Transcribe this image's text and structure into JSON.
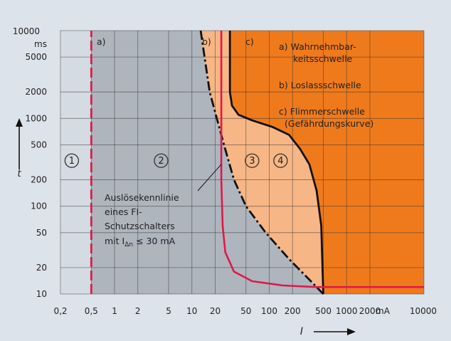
{
  "chart_data": {
    "type": "line",
    "x_axis": {
      "label": "I",
      "unit": "mA",
      "scale": "log",
      "range": [
        0.2,
        10000
      ],
      "ticks": [
        0.2,
        0.5,
        1,
        2,
        5,
        10,
        20,
        50,
        100,
        200,
        500,
        1000,
        2000,
        10000
      ],
      "tick_labels": [
        "0,2",
        "0,5",
        "1",
        "2",
        "5",
        "10",
        "20",
        "50",
        "100",
        "200",
        "500",
        "1000",
        "2000",
        "10000"
      ]
    },
    "y_axis": {
      "label": "t",
      "unit": "ms",
      "scale": "log",
      "range": [
        10,
        10000
      ],
      "ticks": [
        10,
        20,
        50,
        100,
        200,
        500,
        1000,
        2000,
        5000,
        10000
      ],
      "tick_labels": [
        "10",
        "20",
        "50",
        "100",
        "200",
        "500",
        "1000",
        "2000",
        "5000",
        "10000"
      ]
    },
    "grid": true,
    "zones": [
      {
        "id": "1",
        "label": "1",
        "color": "#d4dbe2",
        "x_to": 0.5
      },
      {
        "id": "2",
        "label": "2",
        "color": "#aeb5bd"
      },
      {
        "id": "3",
        "label": "3",
        "color": "#f6b685"
      },
      {
        "id": "4",
        "label": "4",
        "color": "#ef7a1c"
      }
    ],
    "series": [
      {
        "name": "a)",
        "style": "dashed",
        "color": "#d81e4a",
        "points": [
          [
            0.5,
            10
          ],
          [
            0.5,
            10000
          ]
        ]
      },
      {
        "name": "b)",
        "style": "dash-dot",
        "color": "#111111",
        "points": [
          [
            13,
            10000
          ],
          [
            17,
            2000
          ],
          [
            21,
            1000
          ],
          [
            26,
            500
          ],
          [
            35,
            200
          ],
          [
            50,
            100
          ],
          [
            90,
            50
          ],
          [
            180,
            25
          ],
          [
            320,
            15
          ],
          [
            500,
            10
          ]
        ]
      },
      {
        "name": "c)",
        "style": "solid",
        "color": "#111111",
        "points": [
          [
            31,
            10000
          ],
          [
            31,
            5000
          ],
          [
            31,
            2000
          ],
          [
            33,
            1400
          ],
          [
            40,
            1100
          ],
          [
            60,
            950
          ],
          [
            110,
            800
          ],
          [
            180,
            650
          ],
          [
            250,
            450
          ],
          [
            330,
            300
          ],
          [
            410,
            150
          ],
          [
            470,
            60
          ],
          [
            500,
            10
          ]
        ]
      },
      {
        "name": "Auslösekennlinie eines FI-Schutzschalters",
        "style": "solid",
        "color": "#e0184a",
        "points": [
          [
            24,
            10000
          ],
          [
            24,
            200
          ],
          [
            25,
            60
          ],
          [
            27,
            30
          ],
          [
            35,
            18
          ],
          [
            60,
            14
          ],
          [
            150,
            12.5
          ],
          [
            400,
            12
          ],
          [
            10000,
            12
          ]
        ]
      }
    ],
    "legend": [
      {
        "key": "a)",
        "text": [
          "a) Wahrnehmbar-",
          "keitsschwelle"
        ]
      },
      {
        "key": "b)",
        "text": [
          "b) Loslassschwelle"
        ]
      },
      {
        "key": "c)",
        "text": [
          "c) Flimmerschwelle",
          "(Gefährdungskurve)"
        ]
      }
    ],
    "curve_labels": [
      "a)",
      "b)",
      "c)"
    ],
    "annotation": {
      "lines": [
        "Auslösekennlinie",
        "eines FI-",
        "Schutzschalters",
        "mit I",
        "Δn",
        " ≤ 30 mA"
      ],
      "points_to": [
        24,
        300
      ]
    }
  }
}
